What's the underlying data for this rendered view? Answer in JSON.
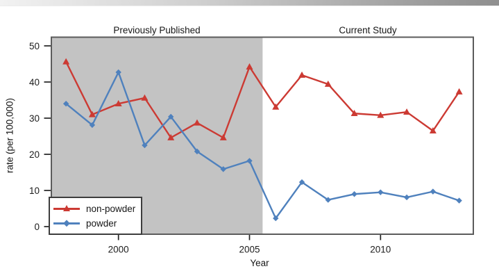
{
  "chart_data": {
    "type": "line",
    "titles": {
      "shaded": "Previously Published",
      "unshaded": "Current Study"
    },
    "xlabel": "Year",
    "ylabel": "rate (per 100,000)",
    "x_ticks": [
      2000,
      2005,
      2010
    ],
    "y_ticks": [
      0,
      10,
      20,
      30,
      40,
      50
    ],
    "xlim": [
      1997.44,
      2013.54
    ],
    "ylim": [
      -2.1,
      52.4
    ],
    "grid": false,
    "shaded_region": {
      "from": 1997.44,
      "to": 2005.5,
      "color": "#c3c3c3"
    },
    "legend": {
      "position": "bottom-left"
    },
    "series": [
      {
        "name": "non-powder",
        "color": "#cc3a33",
        "marker": "triangle",
        "x": [
          1998,
          1999,
          2000,
          2001,
          2002,
          2003,
          2004,
          2005,
          2006,
          2007,
          2008,
          2009,
          2010,
          2011,
          2012,
          2013
        ],
        "values": [
          45.6,
          31.0,
          34.0,
          35.6,
          24.6,
          28.7,
          24.6,
          44.2,
          33.1,
          41.9,
          39.4,
          31.3,
          30.8,
          31.7,
          26.5,
          37.3
        ]
      },
      {
        "name": "powder",
        "color": "#4f81bd",
        "marker": "diamond",
        "x": [
          1998,
          1999,
          2000,
          2001,
          2002,
          2003,
          2004,
          2005,
          2006,
          2007,
          2008,
          2009,
          2010,
          2011,
          2012,
          2013
        ],
        "values": [
          34.0,
          28.1,
          42.7,
          22.5,
          30.4,
          20.8,
          15.9,
          18.2,
          2.3,
          12.3,
          7.4,
          9.0,
          9.5,
          8.1,
          9.7,
          7.2
        ]
      }
    ]
  }
}
